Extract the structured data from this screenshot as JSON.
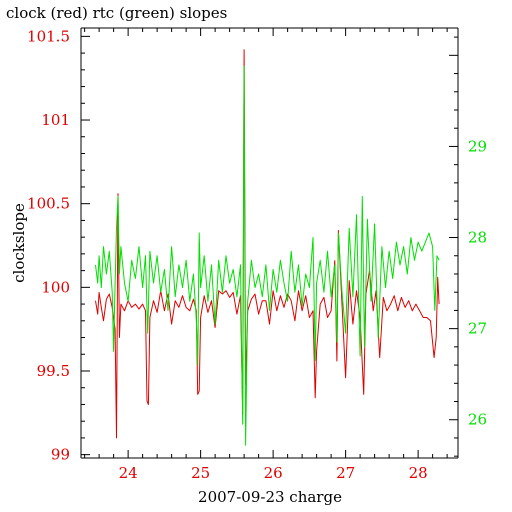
{
  "chart_data": {
    "type": "line",
    "title": "clock (red) rtc (green) slopes",
    "xlabel": "2007-09-23 charge",
    "ylabel": "clockslope",
    "xlim": [
      23.35,
      28.55
    ],
    "ylim_left": [
      98.98,
      101.55
    ],
    "ylim_right": [
      25.58,
      30.3
    ],
    "x_ticks": [
      24,
      25,
      26,
      27,
      28
    ],
    "x_tick_labels": [
      "24",
      "25",
      "26",
      "27",
      "28"
    ],
    "y_left_ticks": [
      99,
      99.5,
      100,
      100.5,
      101,
      101.5
    ],
    "y_left_tick_labels": [
      "99",
      "99.5",
      "100",
      "100.5",
      "101",
      "101.5"
    ],
    "y_right_ticks": [
      26,
      27,
      28,
      29
    ],
    "y_right_tick_labels": [
      "26",
      "27",
      "28",
      "29"
    ],
    "colors": {
      "clock": "#e00000",
      "rtc": "#00e000",
      "axis": "#000000",
      "left_axis_labels": "#e00000",
      "right_axis_labels": "#00e000"
    },
    "series": [
      {
        "axis": "left",
        "color": "#e00000",
        "points": [
          [
            23.55,
            99.92
          ],
          [
            23.58,
            99.84
          ],
          [
            23.6,
            99.97
          ],
          [
            23.63,
            99.88
          ],
          [
            23.66,
            99.8
          ],
          [
            23.7,
            99.93
          ],
          [
            23.74,
            99.96
          ],
          [
            23.78,
            99.88
          ],
          [
            23.82,
            99.75
          ],
          [
            23.84,
            99.1
          ],
          [
            23.86,
            100.56
          ],
          [
            23.88,
            99.7
          ],
          [
            23.9,
            99.9
          ],
          [
            23.95,
            99.86
          ],
          [
            24.0,
            99.92
          ],
          [
            24.05,
            99.88
          ],
          [
            24.1,
            99.9
          ],
          [
            24.15,
            99.87
          ],
          [
            24.2,
            99.9
          ],
          [
            24.24,
            99.86
          ],
          [
            24.26,
            99.32
          ],
          [
            24.28,
            99.3
          ],
          [
            24.3,
            99.82
          ],
          [
            24.35,
            99.92
          ],
          [
            24.4,
            99.85
          ],
          [
            24.45,
            99.98
          ],
          [
            24.5,
            99.86
          ],
          [
            24.55,
            99.96
          ],
          [
            24.6,
            99.78
          ],
          [
            24.65,
            99.92
          ],
          [
            24.7,
            99.88
          ],
          [
            24.75,
            99.95
          ],
          [
            24.8,
            99.88
          ],
          [
            24.85,
            99.86
          ],
          [
            24.9,
            99.93
          ],
          [
            24.94,
            99.86
          ],
          [
            24.96,
            99.36
          ],
          [
            24.98,
            99.38
          ],
          [
            25.0,
            99.82
          ],
          [
            25.05,
            99.95
          ],
          [
            25.1,
            99.85
          ],
          [
            25.15,
            99.92
          ],
          [
            25.2,
            99.76
          ],
          [
            25.25,
            99.98
          ],
          [
            25.3,
            99.96
          ],
          [
            25.35,
            99.98
          ],
          [
            25.4,
            99.94
          ],
          [
            25.45,
            99.97
          ],
          [
            25.5,
            99.84
          ],
          [
            25.55,
            99.95
          ],
          [
            25.58,
            99.24
          ],
          [
            25.6,
            101.42
          ],
          [
            25.62,
            99.42
          ],
          [
            25.65,
            99.86
          ],
          [
            25.7,
            99.93
          ],
          [
            25.75,
            99.96
          ],
          [
            25.8,
            99.84
          ],
          [
            25.85,
            99.92
          ],
          [
            25.9,
            99.92
          ],
          [
            25.95,
            99.78
          ],
          [
            26.0,
            99.98
          ],
          [
            26.05,
            99.86
          ],
          [
            26.1,
            99.95
          ],
          [
            26.15,
            99.88
          ],
          [
            26.2,
            99.96
          ],
          [
            26.25,
            99.92
          ],
          [
            26.3,
            99.8
          ],
          [
            26.35,
            99.98
          ],
          [
            26.4,
            99.86
          ],
          [
            26.45,
            99.95
          ],
          [
            26.5,
            99.82
          ],
          [
            26.55,
            99.86
          ],
          [
            26.58,
            99.34
          ],
          [
            26.6,
            99.62
          ],
          [
            26.65,
            99.9
          ],
          [
            26.7,
            99.94
          ],
          [
            26.75,
            99.82
          ],
          [
            26.8,
            99.86
          ],
          [
            26.85,
            100.16
          ],
          [
            26.88,
            99.56
          ],
          [
            26.9,
            100.34
          ],
          [
            26.95,
            99.9
          ],
          [
            27.0,
            99.46
          ],
          [
            27.05,
            100.04
          ],
          [
            27.1,
            99.78
          ],
          [
            27.15,
            99.98
          ],
          [
            27.2,
            99.82
          ],
          [
            27.25,
            99.36
          ],
          [
            27.28,
            99.96
          ],
          [
            27.33,
            100.1
          ],
          [
            27.38,
            99.86
          ],
          [
            27.42,
            99.98
          ],
          [
            27.47,
            99.58
          ],
          [
            27.52,
            99.94
          ],
          [
            27.57,
            99.86
          ],
          [
            27.62,
            99.9
          ],
          [
            27.67,
            99.95
          ],
          [
            27.72,
            99.86
          ],
          [
            27.77,
            99.94
          ],
          [
            27.82,
            99.88
          ],
          [
            27.87,
            99.92
          ],
          [
            27.92,
            99.86
          ],
          [
            27.97,
            99.9
          ],
          [
            28.02,
            99.86
          ],
          [
            28.07,
            99.82
          ],
          [
            28.12,
            99.82
          ],
          [
            28.17,
            99.8
          ],
          [
            28.22,
            99.58
          ],
          [
            28.25,
            99.7
          ],
          [
            28.27,
            100.06
          ],
          [
            28.29,
            99.9
          ]
        ]
      },
      {
        "axis": "right",
        "color": "#00e000",
        "points": [
          [
            23.55,
            27.7
          ],
          [
            23.58,
            27.5
          ],
          [
            23.6,
            27.8
          ],
          [
            23.63,
            27.45
          ],
          [
            23.66,
            27.9
          ],
          [
            23.7,
            27.6
          ],
          [
            23.74,
            27.85
          ],
          [
            23.78,
            27.4
          ],
          [
            23.8,
            26.75
          ],
          [
            23.82,
            27.5
          ],
          [
            23.84,
            28.1
          ],
          [
            23.86,
            28.45
          ],
          [
            23.88,
            27.6
          ],
          [
            23.9,
            27.9
          ],
          [
            23.95,
            27.5
          ],
          [
            24.0,
            27.3
          ],
          [
            24.05,
            27.75
          ],
          [
            24.1,
            27.55
          ],
          [
            24.15,
            27.9
          ],
          [
            24.2,
            27.45
          ],
          [
            24.24,
            27.8
          ],
          [
            24.27,
            26.95
          ],
          [
            24.3,
            27.85
          ],
          [
            24.35,
            27.5
          ],
          [
            24.4,
            27.8
          ],
          [
            24.45,
            27.4
          ],
          [
            24.5,
            27.65
          ],
          [
            24.55,
            27.2
          ],
          [
            24.6,
            27.9
          ],
          [
            24.65,
            27.35
          ],
          [
            24.7,
            27.7
          ],
          [
            24.75,
            27.45
          ],
          [
            24.8,
            27.75
          ],
          [
            24.85,
            27.3
          ],
          [
            24.9,
            27.6
          ],
          [
            24.94,
            27.1
          ],
          [
            24.96,
            26.6
          ],
          [
            24.98,
            28.05
          ],
          [
            25.0,
            27.45
          ],
          [
            25.05,
            27.8
          ],
          [
            25.1,
            27.3
          ],
          [
            25.15,
            27.7
          ],
          [
            25.2,
            27.05
          ],
          [
            25.25,
            27.75
          ],
          [
            25.3,
            27.4
          ],
          [
            25.35,
            27.8
          ],
          [
            25.4,
            27.5
          ],
          [
            25.45,
            27.65
          ],
          [
            25.5,
            27.35
          ],
          [
            25.55,
            27.7
          ],
          [
            25.58,
            25.95
          ],
          [
            25.6,
            29.88
          ],
          [
            25.62,
            25.72
          ],
          [
            25.65,
            27.3
          ],
          [
            25.7,
            27.75
          ],
          [
            25.75,
            27.45
          ],
          [
            25.8,
            27.6
          ],
          [
            25.85,
            27.35
          ],
          [
            25.9,
            27.7
          ],
          [
            25.95,
            27.2
          ],
          [
            26.0,
            27.65
          ],
          [
            26.05,
            27.4
          ],
          [
            26.1,
            27.75
          ],
          [
            26.15,
            27.5
          ],
          [
            26.2,
            27.3
          ],
          [
            26.25,
            27.85
          ],
          [
            26.3,
            27.4
          ],
          [
            26.35,
            27.7
          ],
          [
            26.4,
            27.25
          ],
          [
            26.45,
            27.6
          ],
          [
            26.5,
            27.45
          ],
          [
            26.55,
            28.0
          ],
          [
            26.58,
            26.65
          ],
          [
            26.6,
            27.5
          ],
          [
            26.65,
            27.75
          ],
          [
            26.7,
            27.4
          ],
          [
            26.75,
            27.85
          ],
          [
            26.8,
            27.35
          ],
          [
            26.85,
            27.7
          ],
          [
            26.88,
            26.85
          ],
          [
            26.9,
            28.05
          ],
          [
            26.95,
            27.4
          ],
          [
            27.0,
            26.95
          ],
          [
            27.05,
            28.1
          ],
          [
            27.1,
            27.35
          ],
          [
            27.15,
            28.25
          ],
          [
            27.2,
            26.7
          ],
          [
            27.23,
            28.45
          ],
          [
            27.26,
            26.8
          ],
          [
            27.3,
            28.2
          ],
          [
            27.35,
            27.3
          ],
          [
            27.4,
            28.15
          ],
          [
            27.45,
            26.9
          ],
          [
            27.5,
            27.9
          ],
          [
            27.55,
            27.45
          ],
          [
            27.6,
            27.85
          ],
          [
            27.65,
            27.55
          ],
          [
            27.7,
            27.95
          ],
          [
            27.75,
            27.7
          ],
          [
            27.8,
            27.9
          ],
          [
            27.85,
            27.6
          ],
          [
            27.9,
            28.0
          ],
          [
            27.95,
            27.75
          ],
          [
            28.0,
            27.95
          ],
          [
            28.05,
            27.85
          ],
          [
            28.1,
            27.95
          ],
          [
            28.15,
            28.05
          ],
          [
            28.2,
            27.9
          ],
          [
            28.23,
            27.2
          ],
          [
            28.26,
            27.8
          ],
          [
            28.29,
            27.75
          ]
        ]
      }
    ]
  }
}
